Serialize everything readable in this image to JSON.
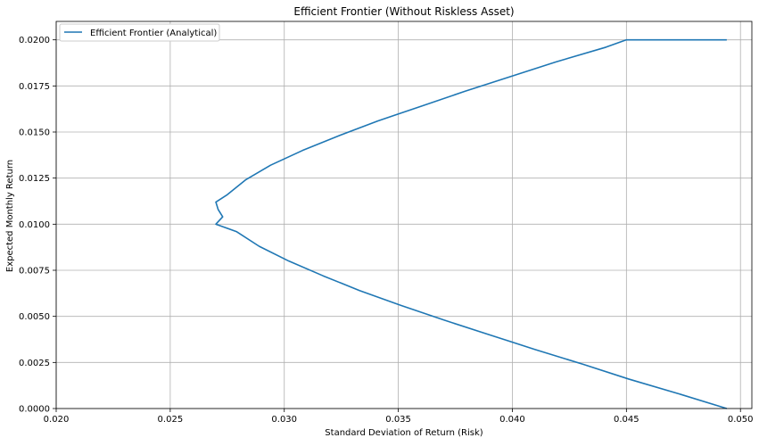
{
  "chart_data": {
    "type": "line",
    "title": "Efficient Frontier (Without Riskless Asset)",
    "xlabel": "Standard Deviation of Return (Risk)",
    "ylabel": "Expected Monthly Return",
    "xlim": [
      0.02,
      0.0505
    ],
    "ylim": [
      0.0,
      0.021
    ],
    "grid": true,
    "legend_position": "top-left",
    "x_ticks": [
      0.02,
      0.025,
      0.03,
      0.035,
      0.04,
      0.045,
      0.05
    ],
    "x_tick_labels": [
      "0.020",
      "0.025",
      "0.030",
      "0.035",
      "0.040",
      "0.045",
      "0.050"
    ],
    "y_ticks": [
      0.0,
      0.0025,
      0.005,
      0.0075,
      0.01,
      0.0125,
      0.015,
      0.0175,
      0.02
    ],
    "y_tick_labels": [
      "0.0000",
      "0.0025",
      "0.0050",
      "0.0075",
      "0.0100",
      "0.0125",
      "0.0150",
      "0.0175",
      "0.0200"
    ],
    "series": [
      {
        "name": "Efficient Frontier (Analytical)",
        "color": "#1f77b4",
        "points": [
          {
            "x": 0.0494,
            "y": 0.0
          },
          {
            "x": 0.0473,
            "y": 0.0008
          },
          {
            "x": 0.0451,
            "y": 0.0016
          },
          {
            "x": 0.0431,
            "y": 0.0024
          },
          {
            "x": 0.041,
            "y": 0.0032
          },
          {
            "x": 0.039,
            "y": 0.004
          },
          {
            "x": 0.037,
            "y": 0.0048
          },
          {
            "x": 0.0351,
            "y": 0.0056
          },
          {
            "x": 0.0333,
            "y": 0.0064
          },
          {
            "x": 0.0317,
            "y": 0.0072
          },
          {
            "x": 0.0302,
            "y": 0.008
          },
          {
            "x": 0.0289,
            "y": 0.0088
          },
          {
            "x": 0.0279,
            "y": 0.0096
          },
          {
            "x": 0.0273,
            "y": 0.0104
          },
          {
            "x": 0.027,
            "y": 0.0112
          },
          {
            "x": 0.027,
            "y": 0.01
          },
          {
            "x": 0.0271,
            "y": 0.0108
          },
          {
            "x": 0.0275,
            "y": 0.0116
          },
          {
            "x": 0.0283,
            "y": 0.0124
          },
          {
            "x": 0.0294,
            "y": 0.0132
          },
          {
            "x": 0.0308,
            "y": 0.014
          },
          {
            "x": 0.0324,
            "y": 0.0148
          },
          {
            "x": 0.0341,
            "y": 0.0156
          },
          {
            "x": 0.036,
            "y": 0.0164
          },
          {
            "x": 0.0379,
            "y": 0.0172
          },
          {
            "x": 0.0399,
            "y": 0.018
          },
          {
            "x": 0.0419,
            "y": 0.0188
          },
          {
            "x": 0.0441,
            "y": 0.0196
          },
          {
            "x": 0.045,
            "y": 0.02
          },
          {
            "x": 0.0494,
            "y": 0.02
          }
        ]
      }
    ]
  }
}
